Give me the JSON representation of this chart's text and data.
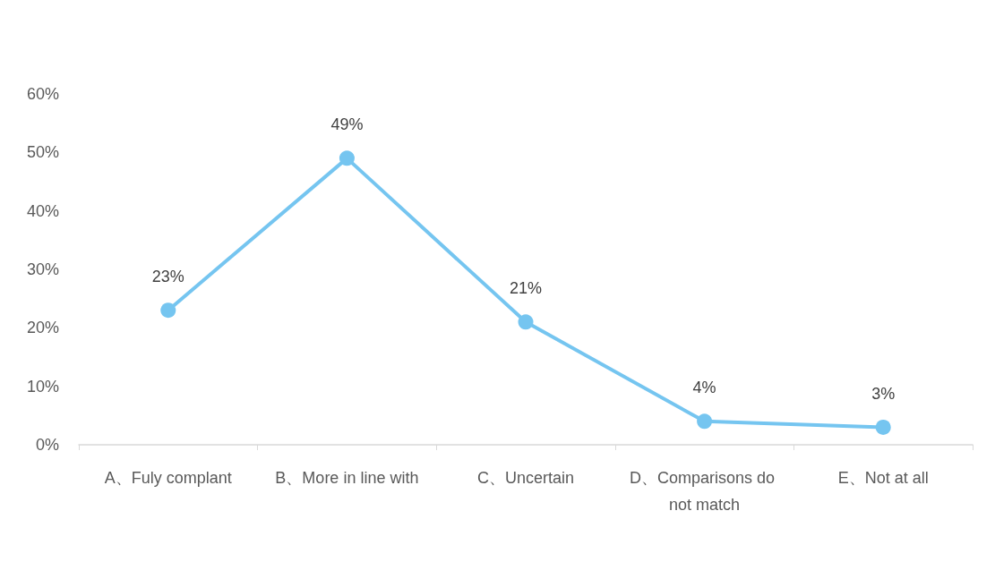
{
  "chart_data": {
    "type": "line",
    "categories": [
      "A、Fuly complant",
      "B、More in line with",
      "C、Uncertain",
      "D、Comparisons do not match",
      "E、Not at all"
    ],
    "series": [
      {
        "color": "#75c5f0",
        "values": [
          23,
          49,
          21,
          4,
          3
        ],
        "value_labels": [
          "23%",
          "49%",
          "21%",
          "4%",
          "3%"
        ]
      }
    ],
    "ylim": [
      0,
      60
    ],
    "yticks": [
      {
        "value": 0,
        "label": "0%"
      },
      {
        "value": 10,
        "label": "10%"
      },
      {
        "value": 20,
        "label": "20%"
      },
      {
        "value": 30,
        "label": "30%"
      },
      {
        "value": 40,
        "label": "40%"
      },
      {
        "value": 50,
        "label": "50%"
      },
      {
        "value": 60,
        "label": "60%"
      }
    ],
    "grid": false,
    "marker": "circle",
    "line_style": "solid"
  }
}
